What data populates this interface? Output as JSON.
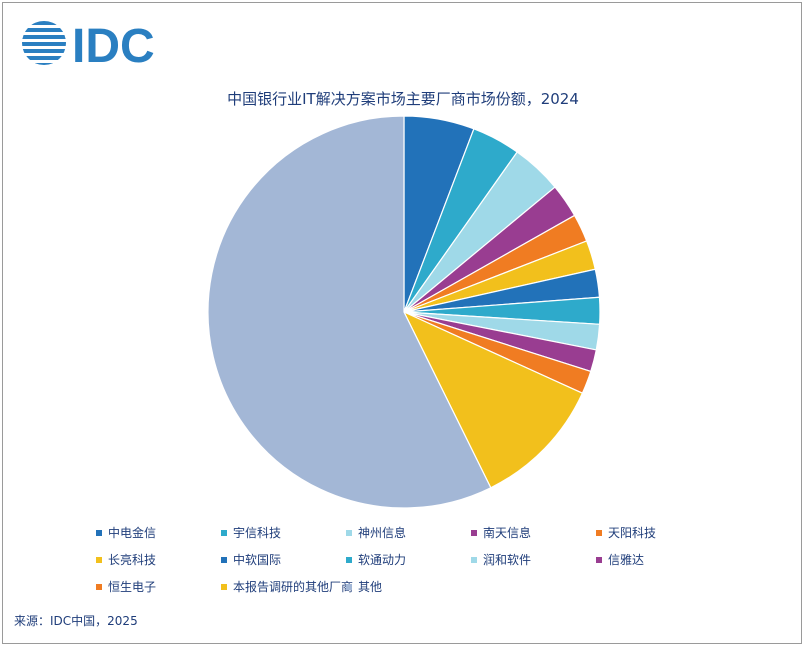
{
  "logo": {
    "text": "IDC",
    "icon": "idc-globe-icon",
    "color": "#2a7fc1"
  },
  "chart_data": {
    "type": "pie",
    "title": "中国银行业IT解决方案市场主要厂商市场份额，2024",
    "start_angle_deg": 0,
    "direction": "clockwise",
    "legend_position": "bottom",
    "slices": [
      {
        "name": "中电金信",
        "value": 5.8,
        "color": "#2272b9"
      },
      {
        "name": "宇信科技",
        "value": 4.0,
        "color": "#2eaacb"
      },
      {
        "name": "神州信息",
        "value": 4.2,
        "color": "#9fd9e8"
      },
      {
        "name": "南天信息",
        "value": 2.8,
        "color": "#993d91"
      },
      {
        "name": "天阳科技",
        "value": 2.3,
        "color": "#f07c22"
      },
      {
        "name": "长亮科技",
        "value": 2.4,
        "color": "#f2c01c"
      },
      {
        "name": "中软国际",
        "value": 2.3,
        "color": "#2272b9"
      },
      {
        "name": "软通动力",
        "value": 2.2,
        "color": "#2eaacb"
      },
      {
        "name": "润和软件",
        "value": 2.1,
        "color": "#9fd9e8"
      },
      {
        "name": "信雅达",
        "value": 1.8,
        "color": "#993d91"
      },
      {
        "name": "恒生电子",
        "value": 1.9,
        "color": "#f07c22"
      },
      {
        "name": "本报告调研的其他厂商",
        "value": 10.9,
        "color": "#f2c01c"
      },
      {
        "name": "其他",
        "value": 57.3,
        "color": "#a3b7d6"
      }
    ]
  },
  "source": "来源：IDC中国，2025"
}
